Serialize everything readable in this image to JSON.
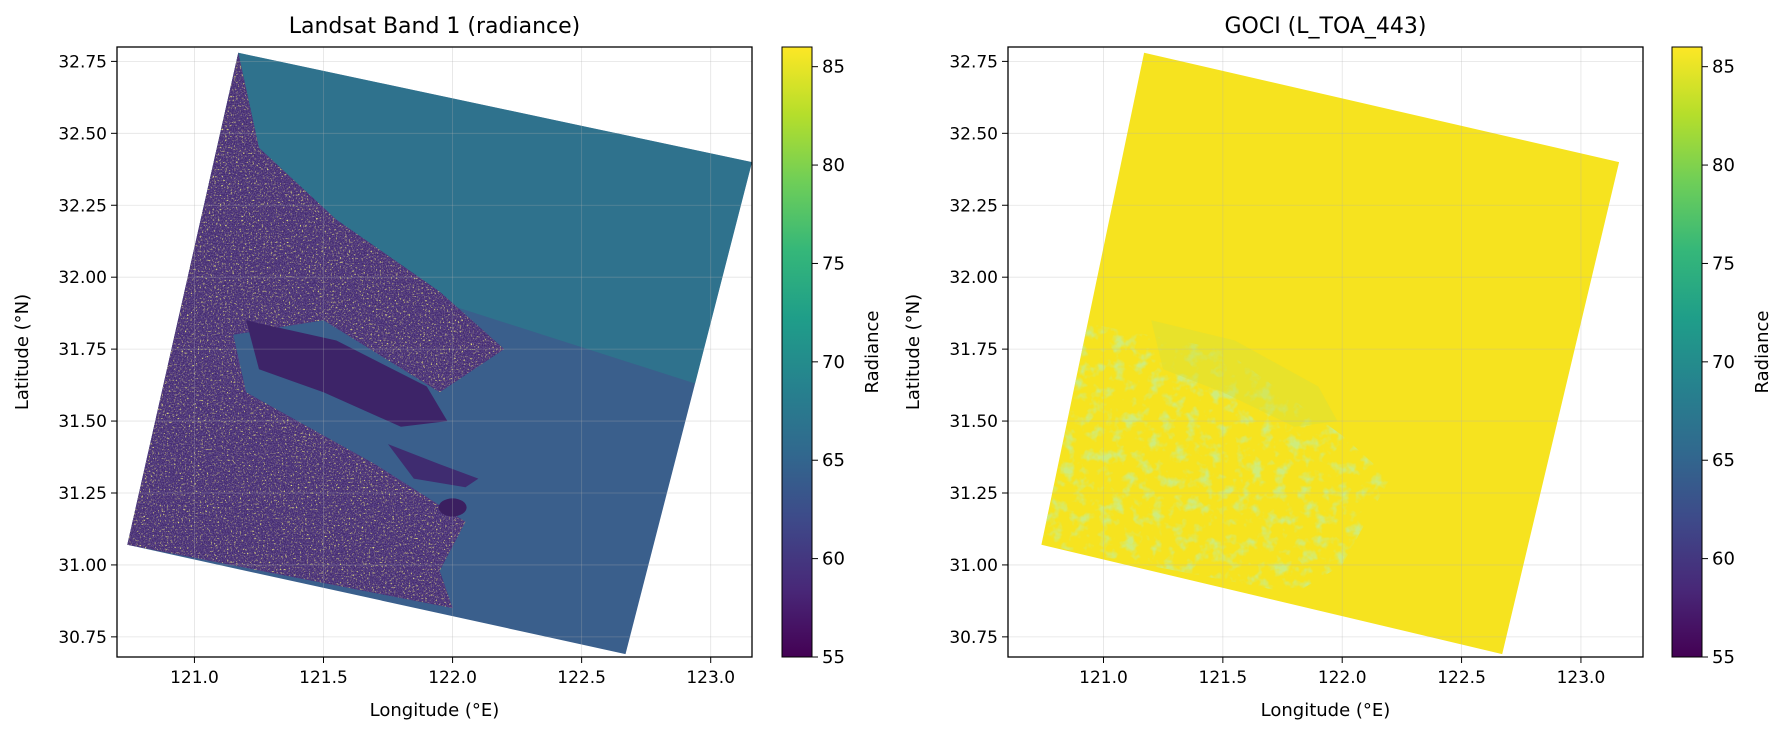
{
  "figure": {
    "colormap": "viridis",
    "colormap_stops": [
      "#440154",
      "#482878",
      "#3e4989",
      "#31688e",
      "#26828e",
      "#1f9e89",
      "#35b779",
      "#6ece58",
      "#b5de2b",
      "#fde725"
    ]
  },
  "chart_data": [
    {
      "type": "heatmap",
      "title": "Landsat Band 1 (radiance)",
      "xlabel": "Longitude (°E)",
      "ylabel": "Latitude (°N)",
      "xlim": [
        120.7,
        123.16
      ],
      "ylim": [
        30.68,
        32.8
      ],
      "xticks": [
        121.0,
        121.5,
        122.0,
        122.5,
        123.0
      ],
      "xtick_labels": [
        "121.0",
        "121.5",
        "122.0",
        "122.5",
        "123.0"
      ],
      "yticks": [
        30.75,
        31.0,
        31.25,
        31.5,
        31.75,
        32.0,
        32.25,
        32.5,
        32.75
      ],
      "ytick_labels": [
        "30.75",
        "31.00",
        "31.25",
        "31.50",
        "31.75",
        "32.00",
        "32.25",
        "32.50",
        "32.75"
      ],
      "grid": true,
      "scene_corners": [
        [
          121.17,
          32.78
        ],
        [
          123.16,
          32.4
        ],
        [
          122.67,
          30.69
        ],
        [
          120.74,
          31.07
        ]
      ],
      "colorbar": {
        "label": "Radiance",
        "range": [
          55,
          86
        ],
        "ticks": [
          55,
          60,
          65,
          70,
          75,
          80,
          85
        ],
        "tick_labels": [
          "55",
          "60",
          "65",
          "70",
          "75",
          "80",
          "85"
        ]
      },
      "approx_values": {
        "ocean_north": 67,
        "ocean_south": 63,
        "land": 58,
        "bright_spots": 82
      }
    },
    {
      "type": "heatmap",
      "title": "GOCI (L_TOA_443)",
      "xlabel": "Longitude (°E)",
      "ylabel": "Latitude (°N)",
      "xlim": [
        120.6,
        123.26
      ],
      "ylim": [
        30.68,
        32.8
      ],
      "xticks": [
        121.0,
        121.5,
        122.0,
        122.5,
        123.0
      ],
      "xtick_labels": [
        "121.0",
        "121.5",
        "122.0",
        "122.5",
        "123.0"
      ],
      "yticks": [
        30.75,
        31.0,
        31.25,
        31.5,
        31.75,
        32.0,
        32.25,
        32.5,
        32.75
      ],
      "ytick_labels": [
        "30.75",
        "31.00",
        "31.25",
        "31.50",
        "31.75",
        "32.00",
        "32.25",
        "32.50",
        "32.75"
      ],
      "grid": true,
      "scene_corners": [
        [
          121.17,
          32.78
        ],
        [
          123.16,
          32.4
        ],
        [
          122.67,
          30.69
        ],
        [
          120.74,
          31.07
        ]
      ],
      "colorbar": {
        "label": "Radiance",
        "range": [
          55,
          86
        ],
        "ticks": [
          55,
          60,
          65,
          70,
          75,
          80,
          85
        ],
        "tick_labels": [
          "55",
          "60",
          "65",
          "70",
          "75",
          "80",
          "85"
        ]
      },
      "approx_values": {
        "background": 86,
        "land_patches": 81
      }
    }
  ]
}
